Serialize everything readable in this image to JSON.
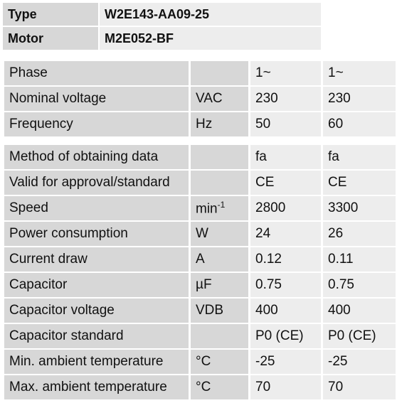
{
  "header": {
    "rows": [
      [
        "Type",
        "W2E143-AA09-25"
      ],
      [
        "Motor",
        "M2E052-BF"
      ]
    ]
  },
  "table": {
    "groups": [
      [
        [
          "Phase",
          null,
          "1~",
          "1~"
        ],
        [
          "Nominal voltage",
          "VAC",
          "230",
          "230"
        ],
        [
          "Frequency",
          "Hz",
          "50",
          "60"
        ]
      ],
      [
        [
          "Method of obtaining data",
          null,
          "fa",
          "fa"
        ],
        [
          "Valid for approval/standard",
          null,
          "CE",
          "CE"
        ],
        [
          "Speed",
          {
            "base": "min",
            "sup": "-1"
          },
          "2800",
          "3300"
        ],
        [
          "Power consumption",
          "W",
          "24",
          "26"
        ],
        [
          "Current draw",
          "A",
          "0.12",
          "0.11"
        ],
        [
          "Capacitor",
          "µF",
          "0.75",
          "0.75"
        ],
        [
          "Capacitor voltage",
          "VDB",
          "400",
          "400"
        ],
        [
          "Capacitor standard",
          null,
          "P0 (CE)",
          "P0 (CE)"
        ],
        [
          "Min. ambient temperature",
          "°C",
          "-25",
          "-25"
        ],
        [
          "Max. ambient temperature",
          "°C",
          "70",
          "70"
        ]
      ]
    ]
  }
}
